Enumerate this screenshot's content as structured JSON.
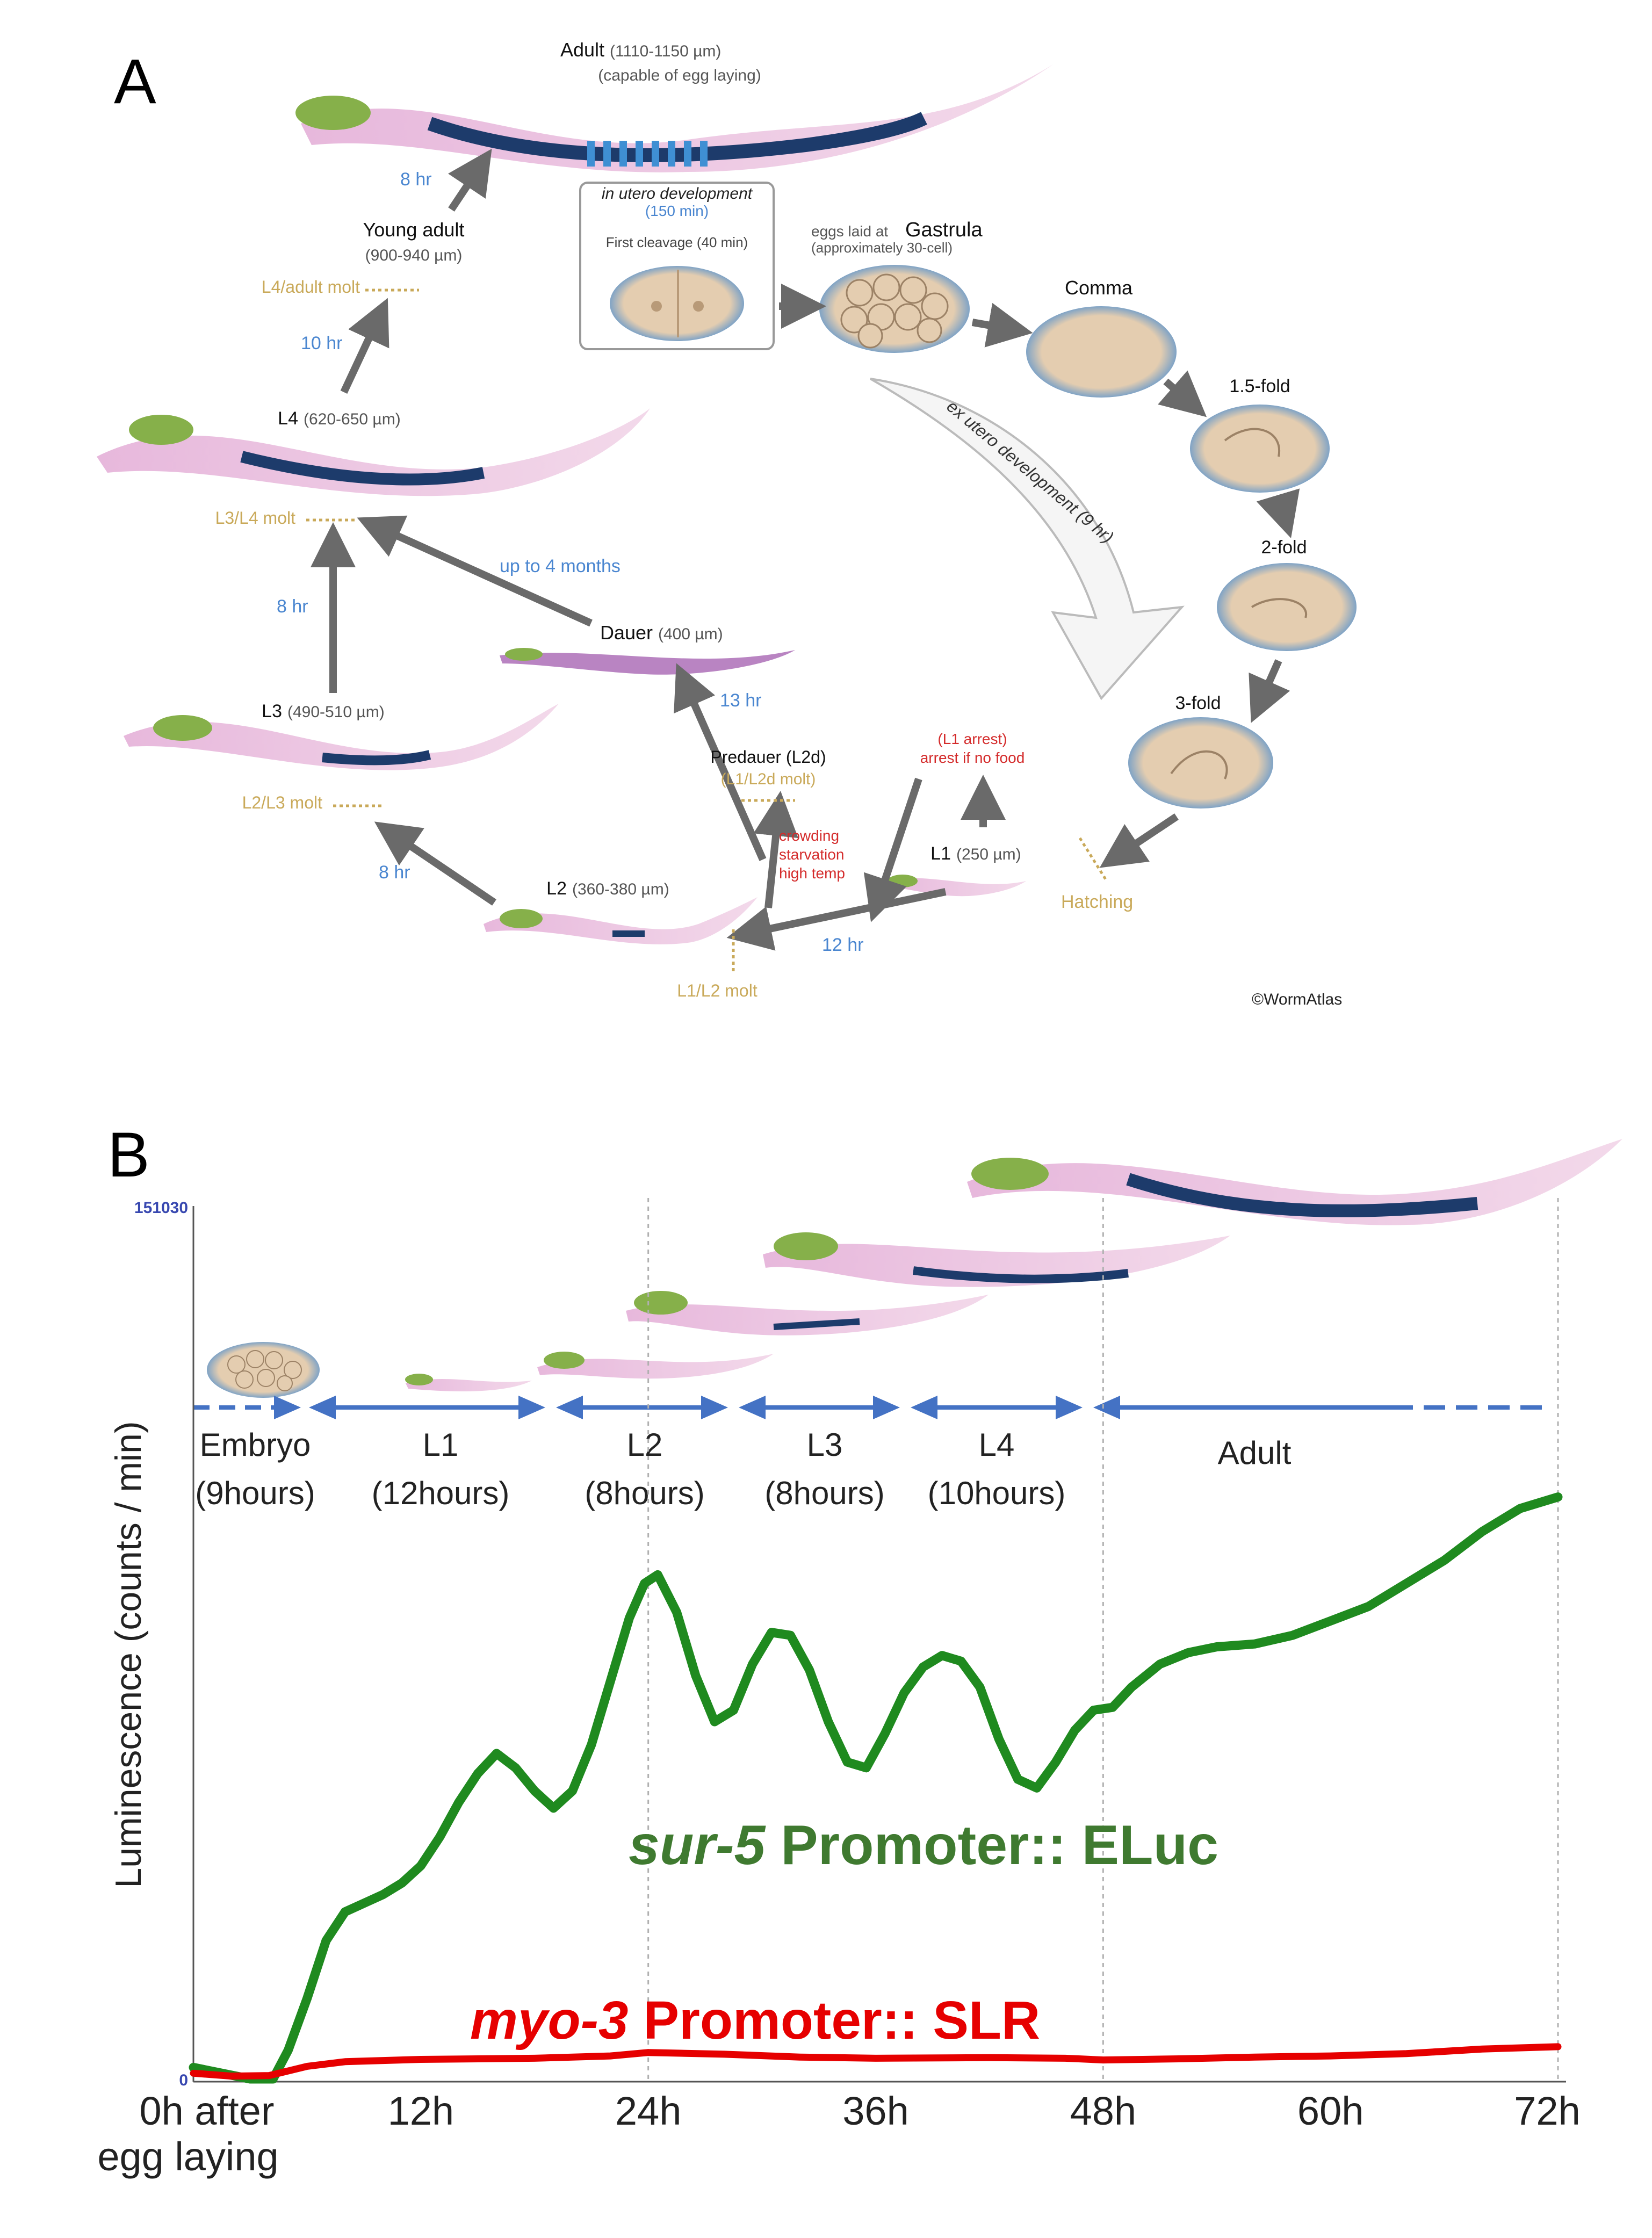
{
  "panelA": {
    "label": "A",
    "adult": {
      "name": "Adult",
      "size": "(1110-1150 µm)",
      "note": "(capable of egg laying)"
    },
    "young_adult": {
      "name": "Young adult",
      "size": "(900-940 µm)"
    },
    "l4": {
      "name": "L4",
      "size": "(620-650 µm)"
    },
    "l3": {
      "name": "L3",
      "size": "(490-510 µm)"
    },
    "l2": {
      "name": "L2",
      "size": "(360-380 µm)"
    },
    "l1": {
      "name": "L1",
      "size": "(250 µm)"
    },
    "dauer": {
      "name": "Dauer",
      "size": "(400 µm)"
    },
    "predauer": {
      "name": "Predauer (L2d)",
      "molt": "(L1/L2d molt)"
    },
    "molts": {
      "l4_adult": "L4/adult molt",
      "l3_l4": "L3/L4 molt",
      "l2_l3": "L2/L3 molt",
      "l1_l2": "L1/L2 molt"
    },
    "times": {
      "ya_adult": "8 hr",
      "l4_ya": "10 hr",
      "l3_l4": "8 hr",
      "l2_l3": "8 hr",
      "l1_l2": "12 hr",
      "dauer_l4": "up to 4 months",
      "pred_dauer": "13 hr"
    },
    "utero_box": {
      "title": "in utero development",
      "time": "(150 min)",
      "first": "First cleavage (40  min)"
    },
    "gastrula": {
      "prefix": "eggs laid at",
      "name": "Gastrula",
      "note": "(approximately 30-cell)"
    },
    "embryo_stages": [
      "Comma",
      "1.5-fold",
      "2-fold",
      "3-fold"
    ],
    "ex_utero": "ex utero development (9 hr)",
    "l1_arrest": [
      "(L1 arrest)",
      "arrest if no food"
    ],
    "dauer_cond": [
      "crowding",
      "starvation",
      "high temp"
    ],
    "hatching": "Hatching",
    "credit": "©WormAtlas"
  },
  "panelB": {
    "label": "B",
    "stages": [
      {
        "name": "Embryo",
        "dur": "(9hours)"
      },
      {
        "name": "L1",
        "dur": "(12hours)"
      },
      {
        "name": "L2",
        "dur": "(8hours)"
      },
      {
        "name": "L3",
        "dur": "(8hours)"
      },
      {
        "name": "L4",
        "dur": "(10hours)"
      },
      {
        "name": "Adult",
        "dur": ""
      }
    ],
    "xaxis_first": [
      "0h after",
      "egg laying"
    ],
    "legend_green": {
      "italic": "sur-5",
      "rest": " Promoter:: ELuc"
    },
    "legend_red": {
      "italic": "myo-3",
      "rest": " Promoter:: SLR"
    }
  },
  "chart_data": {
    "type": "line",
    "ylabel": "Luminescence (counts / min)",
    "ylim": [
      0,
      151030
    ],
    "y_ticks": [
      "151030",
      "0"
    ],
    "xlim": [
      0,
      72
    ],
    "x_ticks": [
      0,
      12,
      24,
      36,
      48,
      60,
      72
    ],
    "x_tick_labels": [
      "0h",
      "12h",
      "24h",
      "36h",
      "48h",
      "60h",
      "72h"
    ],
    "grid_x": [
      24,
      48,
      72
    ],
    "series": [
      {
        "name": "sur-5 Promoter:: ELuc",
        "color": "#1f8a1f",
        "points": [
          [
            0,
            2000
          ],
          [
            3,
            0
          ],
          [
            4.2,
            0
          ],
          [
            5,
            5000
          ],
          [
            6,
            14000
          ],
          [
            7,
            24000
          ],
          [
            8,
            29000
          ],
          [
            9,
            30500
          ],
          [
            10,
            32000
          ],
          [
            11,
            34000
          ],
          [
            12,
            37000
          ],
          [
            13,
            42000
          ],
          [
            14,
            48000
          ],
          [
            15,
            53000
          ],
          [
            16,
            56500
          ],
          [
            17,
            54000
          ],
          [
            18,
            50000
          ],
          [
            19,
            47000
          ],
          [
            20,
            50000
          ],
          [
            21,
            58000
          ],
          [
            22,
            69000
          ],
          [
            23,
            80000
          ],
          [
            23.8,
            86000
          ],
          [
            24.5,
            87500
          ],
          [
            25.5,
            81000
          ],
          [
            26.5,
            70000
          ],
          [
            27.5,
            62000
          ],
          [
            28.5,
            64000
          ],
          [
            29.5,
            72000
          ],
          [
            30.5,
            77500
          ],
          [
            31.5,
            77000
          ],
          [
            32.5,
            71000
          ],
          [
            33.5,
            62000
          ],
          [
            34.5,
            55000
          ],
          [
            35.5,
            54000
          ],
          [
            36.5,
            60000
          ],
          [
            37.5,
            67000
          ],
          [
            38.5,
            71500
          ],
          [
            39.5,
            73500
          ],
          [
            40.5,
            72500
          ],
          [
            41.5,
            68000
          ],
          [
            42.5,
            59000
          ],
          [
            43.5,
            52000
          ],
          [
            44.5,
            50500
          ],
          [
            45.5,
            55000
          ],
          [
            46.5,
            60500
          ],
          [
            47.5,
            64000
          ],
          [
            48.5,
            64500
          ],
          [
            49.5,
            68000
          ],
          [
            51,
            72000
          ],
          [
            52.5,
            74000
          ],
          [
            54,
            75000
          ],
          [
            56,
            75500
          ],
          [
            58,
            77000
          ],
          [
            60,
            79500
          ],
          [
            62,
            82000
          ],
          [
            64,
            86000
          ],
          [
            66,
            90000
          ],
          [
            68,
            95000
          ],
          [
            70,
            99000
          ],
          [
            72,
            101000
          ]
        ]
      },
      {
        "name": "myo-3 Promoter:: SLR",
        "color": "#e60000",
        "points": [
          [
            0,
            1000
          ],
          [
            2,
            500
          ],
          [
            4,
            600
          ],
          [
            6,
            2200
          ],
          [
            8,
            3000
          ],
          [
            12,
            3400
          ],
          [
            18,
            3600
          ],
          [
            22,
            4000
          ],
          [
            24,
            4600
          ],
          [
            28,
            4300
          ],
          [
            32,
            3800
          ],
          [
            36,
            3600
          ],
          [
            42,
            3700
          ],
          [
            46,
            3600
          ],
          [
            48,
            3300
          ],
          [
            52,
            3500
          ],
          [
            56,
            3800
          ],
          [
            60,
            4000
          ],
          [
            64,
            4400
          ],
          [
            68,
            5200
          ],
          [
            72,
            5600
          ]
        ]
      }
    ]
  }
}
